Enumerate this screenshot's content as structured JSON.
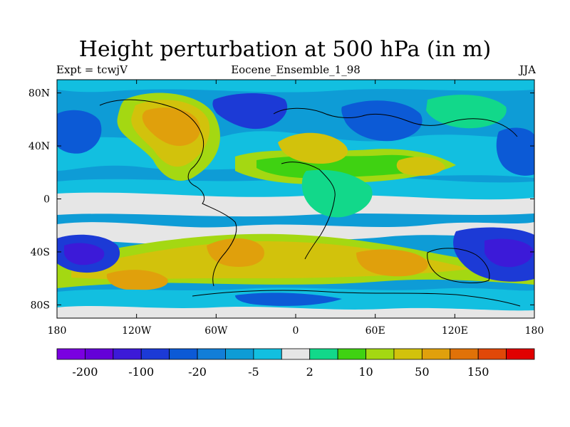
{
  "title": "Height perturbation at 500 hPa (in m)",
  "subtitle_left": "Expt = tcwjV",
  "subtitle_center": "Eocene_Ensemble_1_98",
  "subtitle_right": "JJA",
  "map": {
    "lon_range": [
      -180,
      180
    ],
    "lat_range": [
      -90,
      90
    ],
    "x_ticks": [
      {
        "lon": -180,
        "label": "180"
      },
      {
        "lon": -120,
        "label": "120W"
      },
      {
        "lon": -60,
        "label": "60W"
      },
      {
        "lon": 0,
        "label": "0"
      },
      {
        "lon": 60,
        "label": "60E"
      },
      {
        "lon": 120,
        "label": "120E"
      },
      {
        "lon": 180,
        "label": "180"
      }
    ],
    "y_ticks": [
      {
        "lat": 80,
        "label": "80N"
      },
      {
        "lat": 40,
        "label": "40N"
      },
      {
        "lat": 0,
        "label": "0"
      },
      {
        "lat": -40,
        "label": "40S"
      },
      {
        "lat": -80,
        "label": "80S"
      }
    ]
  },
  "colorbar": {
    "colors": [
      "#7a00e0",
      "#6400d8",
      "#3c1ad8",
      "#1c3ad6",
      "#0c5ad6",
      "#127ed8",
      "#0e9cd6",
      "#12bfe0",
      "#e6e6e6",
      "#12d88a",
      "#3fd212",
      "#a4d812",
      "#d2c20c",
      "#e0a00c",
      "#e07208",
      "#e04808",
      "#e00000"
    ],
    "labels": [
      {
        "after": 1,
        "text": "-200"
      },
      {
        "after": 3,
        "text": "-100"
      },
      {
        "after": 5,
        "text": "-20"
      },
      {
        "after": 7,
        "text": "-5"
      },
      {
        "after": 9,
        "text": "2"
      },
      {
        "after": 11,
        "text": "10"
      },
      {
        "after": 13,
        "text": "50"
      },
      {
        "after": 15,
        "text": "150"
      }
    ]
  }
}
